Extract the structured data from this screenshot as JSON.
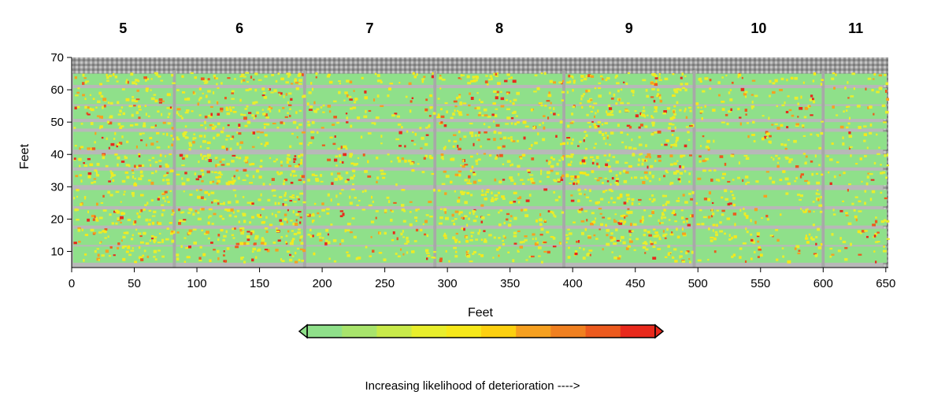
{
  "chart_data": {
    "type": "heatmap",
    "title": "",
    "xlabel": "Feet",
    "ylabel": "Feet",
    "xlim": [
      0,
      652
    ],
    "ylim": [
      5,
      70
    ],
    "x_ticks": [
      0,
      50,
      100,
      150,
      200,
      250,
      300,
      350,
      400,
      450,
      500,
      550,
      600,
      650
    ],
    "y_ticks": [
      10,
      20,
      30,
      40,
      50,
      60,
      70
    ],
    "spans": [
      {
        "label": "5",
        "start": 0,
        "end": 82
      },
      {
        "label": "6",
        "start": 82,
        "end": 186
      },
      {
        "label": "7",
        "start": 186,
        "end": 290
      },
      {
        "label": "8",
        "start": 290,
        "end": 393
      },
      {
        "label": "9",
        "start": 393,
        "end": 497
      },
      {
        "label": "10",
        "start": 497,
        "end": 600
      },
      {
        "label": "11",
        "start": 600,
        "end": 652
      }
    ],
    "colorbar": {
      "caption": "Increasing likelihood of deterioration ---->",
      "colors": [
        "#8fe08a",
        "#a8e46c",
        "#c8ea4a",
        "#e8ee2c",
        "#f6e81a",
        "#fcd010",
        "#f6a020",
        "#f08020",
        "#ec5a1e",
        "#e8291c"
      ]
    },
    "background_colors": {
      "low": "#8fe08a",
      "mid": "#e8ee2c",
      "high": "#e8291c",
      "joint": "#a8a8a8",
      "frame": "#b8b8b8"
    }
  }
}
